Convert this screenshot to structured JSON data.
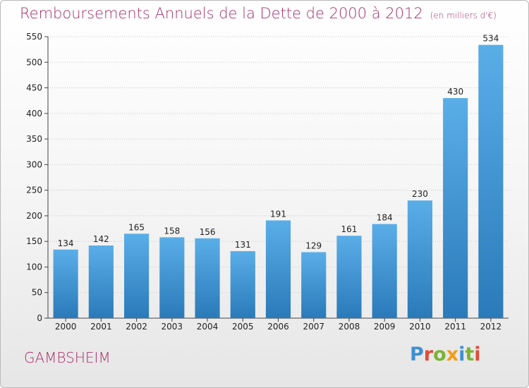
{
  "header": {
    "title": "Remboursements Annuels de la Dette de 2000 à 2012",
    "subtitle": "(en milliers d'€)"
  },
  "commune": "GAMBSHEIM",
  "brand": {
    "name": "Proxiti",
    "colors": [
      "#3f8fd3",
      "#e14b3a",
      "#7ab335",
      "#f39c19",
      "#3f8fd3",
      "#7ab335",
      "#e14b3a"
    ]
  },
  "colors": {
    "title": "#a8306a",
    "bar_light": "#5aaee8",
    "bar_dark": "#2a7ab9"
  },
  "chart_data": {
    "type": "bar",
    "title": "Remboursements Annuels de la Dette de 2000 à 2012",
    "subtitle": "(en milliers d'€)",
    "xlabel": "",
    "ylabel": "",
    "categories": [
      "2000",
      "2001",
      "2002",
      "2003",
      "2004",
      "2005",
      "2006",
      "2007",
      "2008",
      "2009",
      "2010",
      "2011",
      "2012"
    ],
    "values": [
      134,
      142,
      165,
      158,
      156,
      131,
      191,
      129,
      161,
      184,
      230,
      430,
      534
    ],
    "ylim": [
      0,
      550
    ],
    "yticks": [
      0,
      50,
      100,
      150,
      200,
      250,
      300,
      350,
      400,
      450,
      500,
      550
    ],
    "grid": true,
    "legend": "none"
  }
}
